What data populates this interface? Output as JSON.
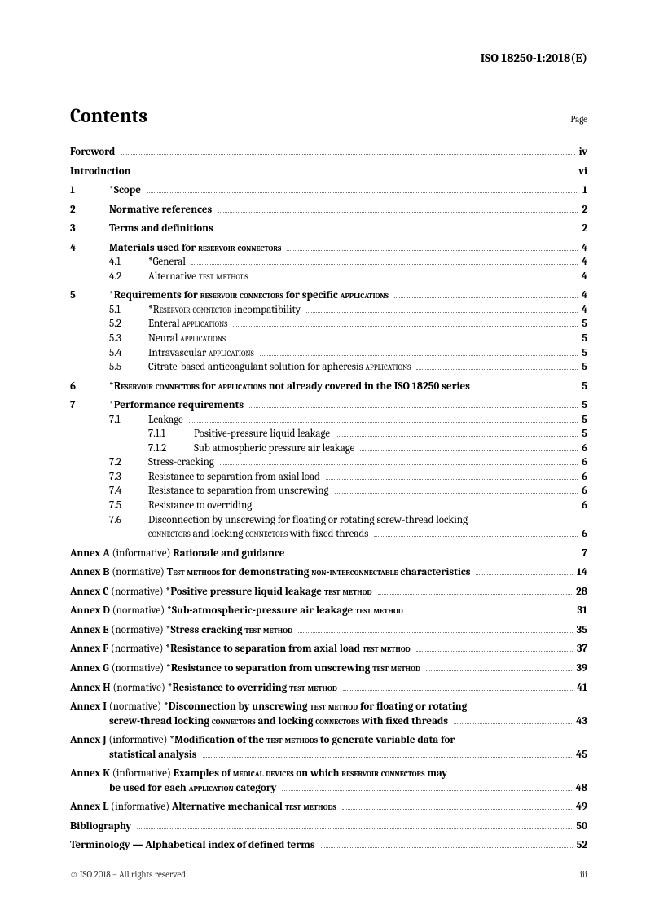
{
  "header": "ISO 18250-1:2018(E)",
  "title": "Contents",
  "pageLabel": "Page",
  "foreword": {
    "label": "Foreword",
    "page": "iv"
  },
  "introduction": {
    "label": "Introduction",
    "page": "vi"
  },
  "s1": {
    "num": "1",
    "title": "*Scope",
    "page": "1"
  },
  "s2": {
    "num": "2",
    "title": "Normative references",
    "page": "2"
  },
  "s3": {
    "num": "3",
    "title": "Terms and definitions",
    "page": "2"
  },
  "s4": {
    "num": "4",
    "title_a": "Materials used for ",
    "title_b": "reservoir connectors",
    "page": "4",
    "i1": {
      "num": "4.1",
      "title": "*General",
      "page": "4"
    },
    "i2": {
      "num": "4.2",
      "title_a": "Alternative ",
      "title_b": "test methods",
      "page": "4"
    }
  },
  "s5": {
    "num": "5",
    "title_a": "*Requirements for ",
    "title_b": "reservoir connectors",
    "title_c": " for specific ",
    "title_d": "applications",
    "page": "4",
    "i1": {
      "num": "5.1",
      "title_a": "*",
      "title_b": "Reservoir connector",
      "title_c": " incompatibility",
      "page": "4"
    },
    "i2": {
      "num": "5.2",
      "title_a": "Enteral ",
      "title_b": "applications",
      "page": "5"
    },
    "i3": {
      "num": "5.3",
      "title_a": "Neural ",
      "title_b": "applications",
      "page": "5"
    },
    "i4": {
      "num": "5.4",
      "title_a": "Intravascular ",
      "title_b": "applications",
      "page": "5"
    },
    "i5": {
      "num": "5.5",
      "title_a": "Citrate-based anticoagulant solution for apheresis ",
      "title_b": "applications",
      "page": "5"
    }
  },
  "s6": {
    "num": "6",
    "title_a": "*",
    "title_b": "Reservoir connectors",
    "title_c": " for ",
    "title_d": "applications",
    "title_e": " not already covered in the ISO 18250 series",
    "page": "5"
  },
  "s7": {
    "num": "7",
    "title": "*Performance requirements",
    "page": "5",
    "i1": {
      "num": "7.1",
      "title": "Leakage",
      "page": "5",
      "j1": {
        "num": "7.1.1",
        "title": "Positive-pressure liquid leakage",
        "page": "5"
      },
      "j2": {
        "num": "7.1.2",
        "title": "Sub atmospheric pressure air leakage",
        "page": "6"
      }
    },
    "i2": {
      "num": "7.2",
      "title": "Stress-cracking",
      "page": "6"
    },
    "i3": {
      "num": "7.3",
      "title": "Resistance to separation from axial load",
      "page": "6"
    },
    "i4": {
      "num": "7.4",
      "title": "Resistance to separation from unscrewing",
      "page": "6"
    },
    "i5": {
      "num": "7.5",
      "title": "Resistance to overriding",
      "page": "6"
    },
    "i6": {
      "num": "7.6",
      "line1": "Disconnection by unscrewing for floating or rotating screw-thread locking",
      "line2_a": "connectors",
      "line2_b": " and locking ",
      "line2_c": "connectors",
      "line2_d": " with fixed threads",
      "page": "6"
    }
  },
  "annexA": {
    "pre": "Annex A",
    "type": " (informative) ",
    "title": "Rationale and guidance",
    "page": "7"
  },
  "annexB": {
    "pre": "Annex B",
    "type": " (normative) ",
    "t1": "Test methods",
    "t2": " for demonstrating ",
    "t3": "non-interconnectable",
    "t4": " characteristics",
    "page": "14"
  },
  "annexC": {
    "pre": "Annex C",
    "type": " (normative) ",
    "t1": "*Positive pressure liquid leakage ",
    "t2": "test method",
    "page": "28"
  },
  "annexD": {
    "pre": "Annex D",
    "type": " (normative) ",
    "t1": "*Sub-atmospheric-pressure air leakage ",
    "t2": "test method",
    "page": "31"
  },
  "annexE": {
    "pre": "Annex E",
    "type": " (normative) ",
    "t1": "*Stress cracking ",
    "t2": "test method",
    "page": "35"
  },
  "annexF": {
    "pre": "Annex F",
    "type": " (normative) ",
    "t1": "*Resistance to separation from axial load ",
    "t2": "test method",
    "page": "37"
  },
  "annexG": {
    "pre": "Annex G",
    "type": " (normative) ",
    "t1": "*Resistance to separation from unscrewing ",
    "t2": "test method",
    "page": "39"
  },
  "annexH": {
    "pre": "Annex H",
    "type": " (normative) ",
    "t1": "*Resistance to overriding ",
    "t2": "test method",
    "page": "41"
  },
  "annexI": {
    "pre": "Annex I",
    "type": " (normative) ",
    "l1a": "*Disconnection by unscrewing ",
    "l1b": "test method",
    "l1c": " for floating or rotating",
    "l2a": "screw-thread locking ",
    "l2b": "connectors",
    "l2c": " and locking ",
    "l2d": "connectors",
    "l2e": " with fixed threads",
    "page": "43"
  },
  "annexJ": {
    "pre": "Annex J",
    "type": " (informative) ",
    "l1a": "*Modification of the ",
    "l1b": "test methods",
    "l1c": " to generate variable data for",
    "l2": "statistical analysis",
    "page": "45"
  },
  "annexK": {
    "pre": "Annex K",
    "type": " (informative) ",
    "l1a": "Examples of ",
    "l1b": "medical devices",
    "l1c": " on which ",
    "l1d": "reservoir connectors",
    "l1e": " may",
    "l2a": "be used for each ",
    "l2b": "application",
    "l2c": " category",
    "page": "48"
  },
  "annexL": {
    "pre": "Annex L",
    "type": " (informative) ",
    "t1": "Alternative mechanical ",
    "t2": "test methods",
    "page": "49"
  },
  "bibliography": {
    "label": "Bibliography",
    "page": "50"
  },
  "terminology": {
    "label": "Terminology — Alphabetical index of defined terms",
    "page": "52"
  },
  "footer": {
    "left": "© ISO 2018 – All rights reserved",
    "right": "iii"
  }
}
